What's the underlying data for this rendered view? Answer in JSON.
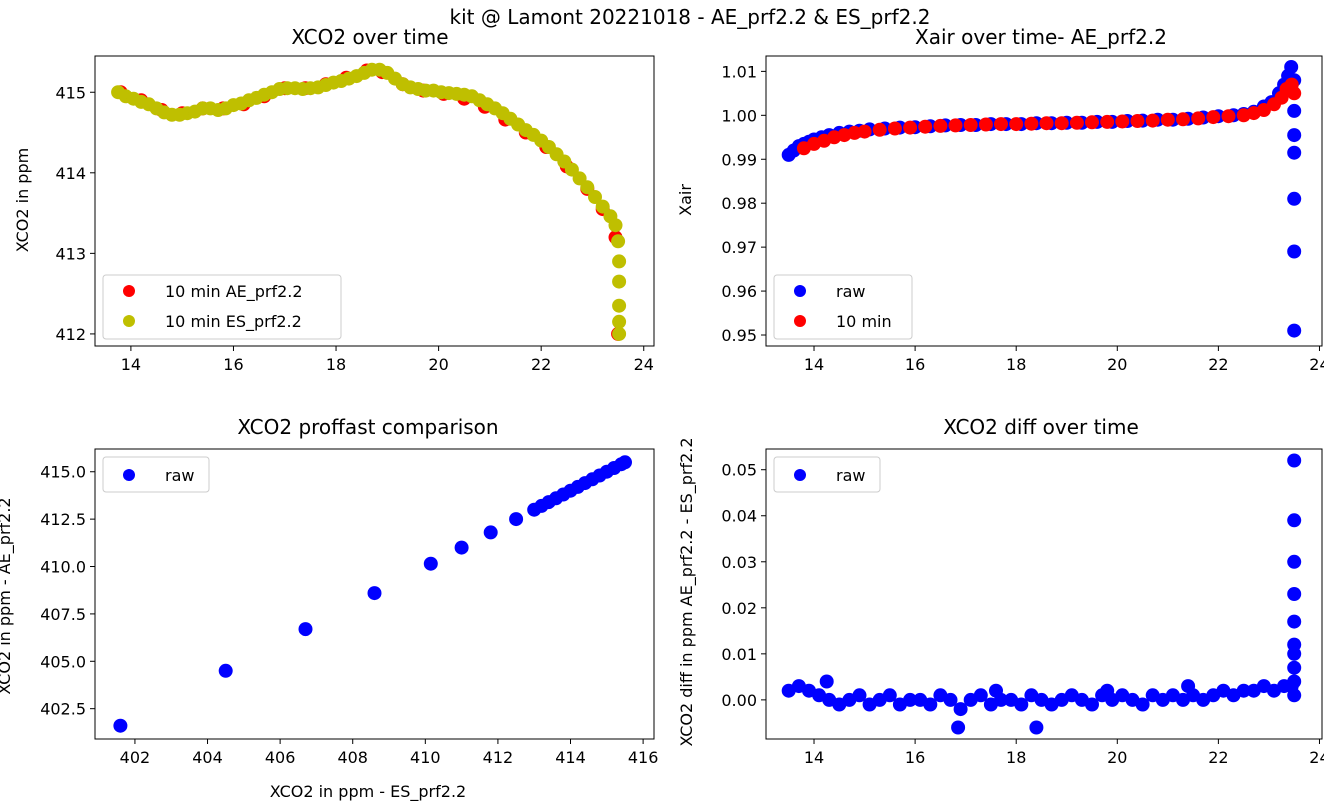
{
  "figure_title": "kit @ Lamont 20221018 - AE_prf2.2 & ES_prf2.2",
  "colors": {
    "blue": "#0000ff",
    "red": "#ff0000",
    "olive": "#bfbf00"
  },
  "chart_data": [
    {
      "id": "p1",
      "type": "scatter",
      "title": "XCO2 over time",
      "xlabel": "",
      "ylabel": "XCO2 in ppm",
      "xlim": [
        13.3,
        24.2
      ],
      "ylim": [
        411.85,
        415.45
      ],
      "xticks": [
        14,
        16,
        18,
        20,
        22,
        24
      ],
      "yticks": [
        412,
        413,
        414,
        415
      ],
      "ytick_decimals": 0,
      "legend": "lower-left",
      "series": [
        {
          "name": "10 min AE_prf2.2",
          "color": "#ff0000",
          "x": [
            13.8,
            14.2,
            14.6,
            15.0,
            15.4,
            15.8,
            16.2,
            16.6,
            17.0,
            17.4,
            17.8,
            18.2,
            18.6,
            18.9,
            19.3,
            19.7,
            20.1,
            20.5,
            20.9,
            21.3,
            21.7,
            22.1,
            22.5,
            22.9,
            23.2,
            23.45,
            23.5
          ],
          "y": [
            415.0,
            414.9,
            414.78,
            414.74,
            414.8,
            414.8,
            414.85,
            414.95,
            415.05,
            415.05,
            415.1,
            415.18,
            415.27,
            415.25,
            415.1,
            415.02,
            414.98,
            414.92,
            414.82,
            414.66,
            414.5,
            414.32,
            414.08,
            413.8,
            413.55,
            413.2,
            412.0
          ]
        },
        {
          "name": "10 min ES_prf2.2",
          "color": "#bfbf00",
          "x": [
            13.75,
            13.9,
            14.05,
            14.2,
            14.35,
            14.5,
            14.65,
            14.8,
            14.95,
            15.1,
            15.25,
            15.4,
            15.55,
            15.7,
            15.85,
            16.0,
            16.15,
            16.3,
            16.45,
            16.6,
            16.75,
            16.9,
            17.05,
            17.2,
            17.35,
            17.5,
            17.65,
            17.8,
            17.95,
            18.1,
            18.25,
            18.4,
            18.55,
            18.7,
            18.85,
            19.0,
            19.15,
            19.3,
            19.45,
            19.6,
            19.75,
            19.9,
            20.05,
            20.2,
            20.35,
            20.5,
            20.65,
            20.8,
            20.95,
            21.1,
            21.25,
            21.4,
            21.55,
            21.7,
            21.85,
            22.0,
            22.15,
            22.3,
            22.45,
            22.6,
            22.75,
            22.9,
            23.05,
            23.2,
            23.35,
            23.45,
            23.5,
            23.52,
            23.52,
            23.52,
            23.52,
            23.52
          ],
          "y": [
            415.0,
            414.95,
            414.92,
            414.88,
            414.85,
            414.8,
            414.75,
            414.72,
            414.72,
            414.74,
            414.76,
            414.8,
            414.8,
            414.78,
            414.8,
            414.84,
            414.86,
            414.9,
            414.93,
            414.97,
            415.0,
            415.04,
            415.05,
            415.05,
            415.04,
            415.05,
            415.06,
            415.09,
            415.12,
            415.14,
            415.17,
            415.2,
            415.24,
            415.28,
            415.28,
            415.24,
            415.17,
            415.1,
            415.06,
            415.04,
            415.02,
            415.02,
            415.0,
            414.99,
            414.98,
            414.97,
            414.95,
            414.9,
            414.85,
            414.8,
            414.74,
            414.67,
            414.6,
            414.53,
            414.47,
            414.4,
            414.32,
            414.23,
            414.14,
            414.04,
            413.93,
            413.82,
            413.7,
            413.58,
            413.46,
            413.35,
            413.15,
            412.9,
            412.65,
            412.35,
            412.15,
            412.0
          ]
        }
      ]
    },
    {
      "id": "p2",
      "type": "scatter",
      "title": "Xair over time- AE_prf2.2",
      "xlabel": "",
      "ylabel": "Xair",
      "xlim": [
        13.05,
        24.05
      ],
      "ylim": [
        0.9475,
        1.0135
      ],
      "xticks": [
        14,
        16,
        18,
        20,
        22,
        24
      ],
      "yticks": [
        0.95,
        0.96,
        0.97,
        0.98,
        0.99,
        1.0,
        1.01
      ],
      "ytick_decimals": 2,
      "legend": "lower-left",
      "series": [
        {
          "name": "raw",
          "color": "#0000ff",
          "x": [
            13.5,
            13.6,
            13.7,
            13.8,
            13.9,
            14.0,
            14.15,
            14.3,
            14.5,
            14.7,
            14.9,
            15.1,
            15.4,
            15.7,
            16.0,
            16.3,
            16.6,
            16.9,
            17.2,
            17.5,
            17.8,
            18.1,
            18.4,
            18.7,
            19.0,
            19.3,
            19.6,
            19.9,
            20.2,
            20.5,
            20.8,
            21.1,
            21.4,
            21.7,
            22.0,
            22.3,
            22.5,
            22.7,
            22.9,
            23.05,
            23.2,
            23.3,
            23.38,
            23.44,
            23.5,
            23.5,
            23.5,
            23.5,
            23.5,
            23.5,
            23.5
          ],
          "y": [
            0.991,
            0.992,
            0.993,
            0.9935,
            0.994,
            0.9945,
            0.995,
            0.9955,
            0.996,
            0.9963,
            0.9965,
            0.9968,
            0.997,
            0.9972,
            0.9973,
            0.9975,
            0.9977,
            0.9978,
            0.9978,
            0.998,
            0.998,
            0.998,
            0.9982,
            0.9982,
            0.9983,
            0.9983,
            0.9985,
            0.9985,
            0.9987,
            0.9988,
            0.999,
            0.999,
            0.9992,
            0.9995,
            0.9998,
            1.0,
            1.0003,
            1.0008,
            1.002,
            1.003,
            1.005,
            1.007,
            1.009,
            1.011,
            1.008,
            1.001,
            0.9955,
            0.9915,
            0.981,
            0.969,
            0.951
          ]
        },
        {
          "name": "10 min",
          "color": "#ff0000",
          "x": [
            13.8,
            14.0,
            14.2,
            14.4,
            14.6,
            14.8,
            15.0,
            15.3,
            15.6,
            15.9,
            16.2,
            16.5,
            16.8,
            17.1,
            17.4,
            17.7,
            18.0,
            18.3,
            18.6,
            18.9,
            19.2,
            19.5,
            19.8,
            20.1,
            20.4,
            20.7,
            21.0,
            21.3,
            21.6,
            21.9,
            22.2,
            22.5,
            22.7,
            22.9,
            23.1,
            23.25,
            23.35,
            23.45,
            23.5
          ],
          "y": [
            0.9925,
            0.9935,
            0.9942,
            0.995,
            0.9955,
            0.996,
            0.9963,
            0.9967,
            0.997,
            0.9972,
            0.9974,
            0.9976,
            0.9977,
            0.9978,
            0.9979,
            0.998,
            0.998,
            0.9981,
            0.9982,
            0.9982,
            0.9983,
            0.9984,
            0.9985,
            0.9986,
            0.9987,
            0.9988,
            0.999,
            0.9991,
            0.9993,
            0.9996,
            0.9998,
            1.0,
            1.0005,
            1.0012,
            1.0025,
            1.004,
            1.006,
            1.007,
            1.005
          ]
        }
      ]
    },
    {
      "id": "p3",
      "type": "scatter",
      "title": "XCO2 proffast comparison",
      "xlabel": "XCO2 in ppm - ES_prf2.2",
      "ylabel": "XCO2 in ppm - AE_prf2.2",
      "xlim": [
        400.9,
        416.3
      ],
      "ylim": [
        400.9,
        416.2
      ],
      "xticks": [
        402,
        404,
        406,
        408,
        410,
        412,
        414,
        416
      ],
      "yticks": [
        402.5,
        405.0,
        407.5,
        410.0,
        412.5,
        415.0
      ],
      "ytick_decimals": 1,
      "legend": "upper-left",
      "series": [
        {
          "name": "raw",
          "color": "#0000ff",
          "x": [
            401.6,
            404.5,
            406.7,
            408.6,
            410.15,
            411.0,
            411.8,
            412.5,
            413.0,
            413.2,
            413.4,
            413.6,
            413.8,
            414.0,
            414.2,
            414.4,
            414.6,
            414.8,
            415.0,
            415.2,
            415.4,
            415.5
          ],
          "y": [
            401.6,
            404.5,
            406.7,
            408.6,
            410.15,
            411.0,
            411.8,
            412.5,
            413.0,
            413.2,
            413.4,
            413.6,
            413.8,
            414.0,
            414.2,
            414.4,
            414.6,
            414.8,
            415.0,
            415.2,
            415.4,
            415.5
          ]
        }
      ]
    },
    {
      "id": "p4",
      "type": "scatter",
      "title": "XCO2 diff over time",
      "xlabel": "",
      "ylabel": "XCO2 diff in ppm AE_prf2.2 - ES_prf2.2",
      "xlim": [
        13.05,
        24.05
      ],
      "ylim": [
        -0.0085,
        0.0545
      ],
      "xticks": [
        14,
        16,
        18,
        20,
        22,
        24
      ],
      "yticks": [
        0.0,
        0.01,
        0.02,
        0.03,
        0.04,
        0.05
      ],
      "ytick_decimals": 2,
      "legend": "upper-left",
      "series": [
        {
          "name": "raw",
          "color": "#0000ff",
          "x": [
            13.5,
            13.7,
            13.9,
            14.1,
            14.3,
            14.5,
            14.7,
            14.9,
            15.1,
            15.3,
            15.5,
            15.7,
            15.9,
            16.1,
            16.3,
            16.5,
            16.7,
            16.9,
            17.1,
            17.3,
            17.5,
            17.7,
            17.9,
            18.1,
            18.3,
            18.5,
            18.7,
            18.9,
            19.1,
            19.3,
            19.5,
            19.7,
            19.9,
            20.1,
            20.3,
            20.5,
            20.7,
            20.9,
            21.1,
            21.3,
            21.5,
            21.7,
            21.9,
            22.1,
            22.3,
            22.5,
            22.7,
            22.9,
            23.1,
            23.3,
            23.45,
            16.85,
            18.4,
            14.25,
            17.6,
            19.8,
            21.4,
            23.5,
            23.5,
            23.5,
            23.5,
            23.5,
            23.5,
            23.5,
            23.5,
            23.5,
            23.5
          ],
          "y": [
            0.002,
            0.003,
            0.002,
            0.001,
            0.0,
            -0.001,
            0.0,
            0.001,
            -0.001,
            0.0,
            0.001,
            -0.001,
            0.0,
            0.0,
            -0.001,
            0.001,
            0.0,
            -0.002,
            0.0,
            0.001,
            -0.001,
            0.0,
            0.0,
            -0.001,
            0.001,
            0.0,
            -0.001,
            0.0,
            0.001,
            0.0,
            -0.001,
            0.001,
            0.0,
            0.001,
            0.0,
            -0.001,
            0.001,
            0.0,
            0.001,
            0.0,
            0.001,
            0.0,
            0.001,
            0.002,
            0.001,
            0.002,
            0.002,
            0.003,
            0.002,
            0.003,
            0.003,
            -0.006,
            -0.006,
            0.004,
            0.002,
            0.002,
            0.003,
            0.004,
            0.007,
            0.01,
            0.012,
            0.017,
            0.023,
            0.03,
            0.039,
            0.052,
            0.001
          ]
        }
      ]
    }
  ]
}
